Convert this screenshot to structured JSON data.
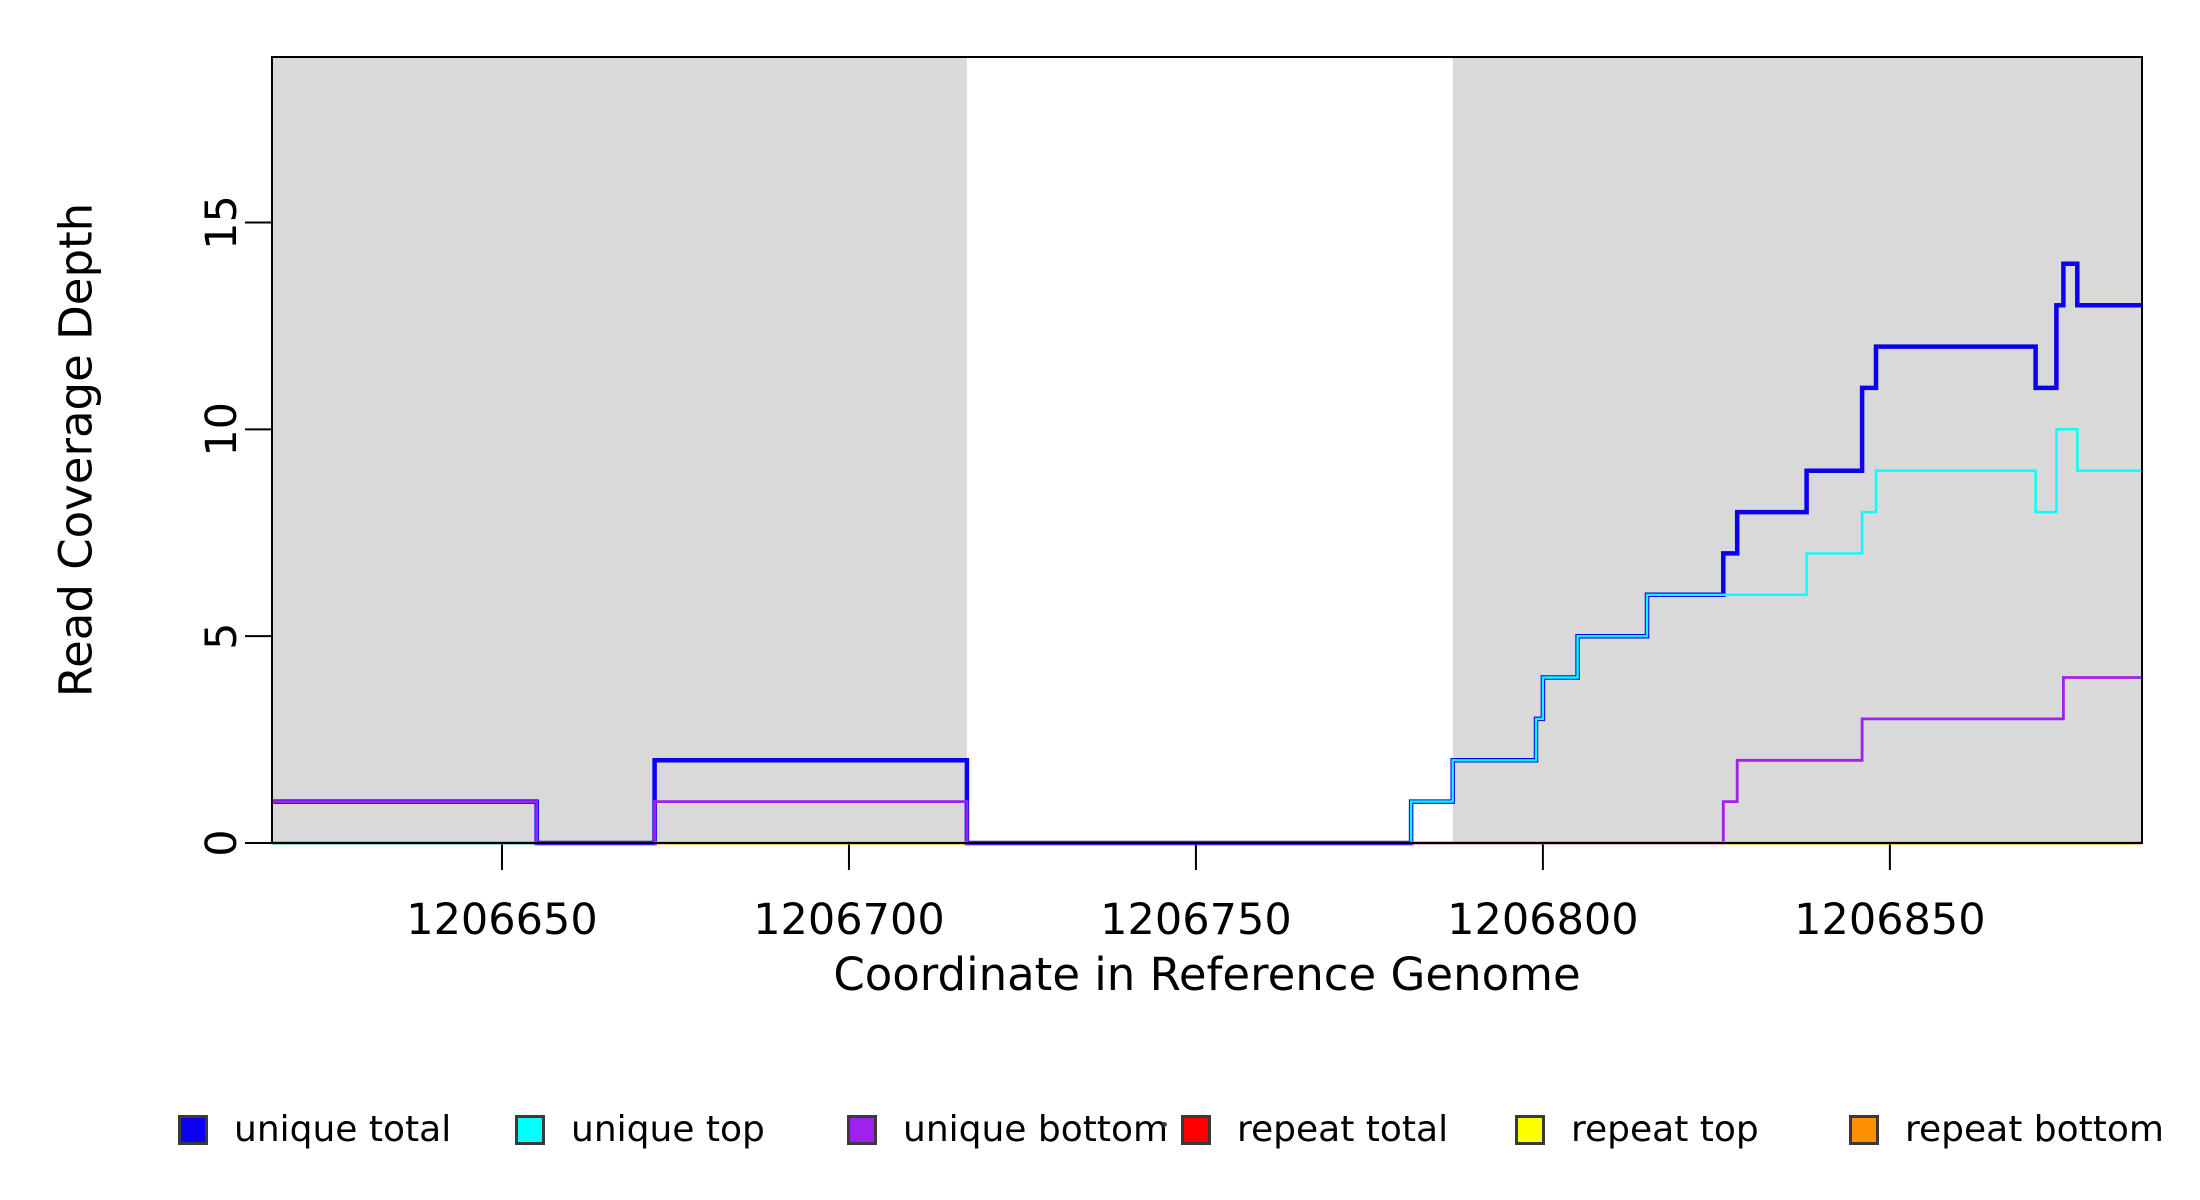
{
  "chart_data": {
    "type": "line",
    "subtype": "step",
    "title": "",
    "xlabel": "Coordinate in Reference Genome",
    "ylabel": "Read Coverage Depth",
    "x_range": [
      1206616.86,
      1206886.33
    ],
    "y_range": [
      0,
      19
    ],
    "x_ticks": [
      1206650,
      1206700,
      1206750,
      1206800,
      1206850
    ],
    "y_ticks": [
      0,
      5,
      10,
      15
    ],
    "grid": false,
    "legend_position": "bottom",
    "background_color": "#ffffff",
    "shaded_region_color": "#d9d9d9",
    "shaded_regions": [
      [
        1206616.86,
        1206717
      ],
      [
        1206787,
        1206886.33
      ]
    ],
    "series": [
      {
        "name": "repeat total",
        "color": "#ff0000",
        "width": 3,
        "points": [
          [
            1206616.86,
            0
          ]
        ]
      },
      {
        "name": "repeat top",
        "color": "#ffff00",
        "width": 3,
        "points": [
          [
            1206616.86,
            0
          ]
        ]
      },
      {
        "name": "repeat bottom",
        "color": "#ff9000",
        "width": 3,
        "points": [
          [
            1206616.86,
            0
          ]
        ]
      },
      {
        "name": "unique total",
        "color": "#0b00f0",
        "width": 4.5,
        "points": [
          [
            1206616.86,
            1
          ],
          [
            1206655,
            0
          ],
          [
            1206672,
            2
          ],
          [
            1206717,
            0
          ],
          [
            1206781,
            1
          ],
          [
            1206787,
            2
          ],
          [
            1206799,
            3
          ],
          [
            1206800,
            4
          ],
          [
            1206805,
            5
          ],
          [
            1206815,
            6
          ],
          [
            1206826,
            7
          ],
          [
            1206828,
            8
          ],
          [
            1206838,
            9
          ],
          [
            1206846,
            11
          ],
          [
            1206848,
            12
          ],
          [
            1206871,
            11
          ],
          [
            1206874,
            13
          ],
          [
            1206875,
            14
          ],
          [
            1206877,
            13
          ]
        ]
      },
      {
        "name": "unique top",
        "color": "#00ffff",
        "width": 2.4,
        "points": [
          [
            1206616.86,
            0
          ],
          [
            1206672,
            1
          ],
          [
            1206717,
            0
          ],
          [
            1206781,
            1
          ],
          [
            1206787,
            2
          ],
          [
            1206799,
            3
          ],
          [
            1206800,
            4
          ],
          [
            1206805,
            5
          ],
          [
            1206815,
            6
          ],
          [
            1206838,
            7
          ],
          [
            1206846,
            8
          ],
          [
            1206848,
            9
          ],
          [
            1206871,
            8
          ],
          [
            1206874,
            10
          ],
          [
            1206877,
            9
          ]
        ]
      },
      {
        "name": "unique bottom",
        "color": "#a020f0",
        "width": 2.8,
        "points": [
          [
            1206616.86,
            1
          ],
          [
            1206655,
            0
          ],
          [
            1206672,
            1
          ],
          [
            1206717,
            0
          ],
          [
            1206826,
            1
          ],
          [
            1206828,
            2
          ],
          [
            1206846,
            3
          ],
          [
            1206875,
            4
          ]
        ]
      }
    ],
    "zero_line_segments": [
      {
        "from": 1206616.86,
        "to": 1206655,
        "color": "#1fb3a8"
      },
      {
        "from": 1206655,
        "to": 1206672,
        "color": "#7d3cf0"
      },
      {
        "from": 1206672,
        "to": 1206717,
        "color": "#ff9000"
      },
      {
        "from": 1206717,
        "to": 1206781,
        "color": "#7d3cf0"
      },
      {
        "from": 1206781,
        "to": 1206826,
        "color": "#ee4e8e"
      },
      {
        "from": 1206826,
        "to": 1206886.33,
        "color": "#ff9000"
      }
    ],
    "legend": [
      {
        "label": "unique total",
        "color": "#0b00f0"
      },
      {
        "label": "unique top",
        "color": "#00ffff"
      },
      {
        "label": "unique bottom",
        "color": "#a020f0"
      },
      {
        "label": "repeat total",
        "color": "#ff0000"
      },
      {
        "label": "repeat top",
        "color": "#ffff00"
      },
      {
        "label": "repeat bottom",
        "color": "#ff9000"
      }
    ]
  }
}
